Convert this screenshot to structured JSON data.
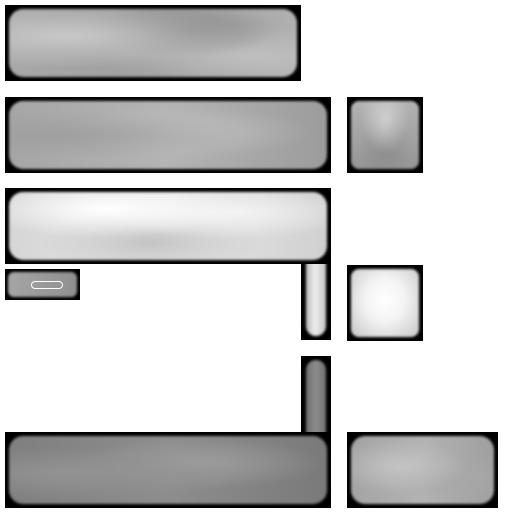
{
  "tiles": [
    {
      "name": "texture-tile-1",
      "colors": [
        "#b5b5b5",
        "#9a9a9a",
        "#7e7e7e",
        "#c4c4c4"
      ]
    },
    {
      "name": "texture-tile-2",
      "colors": [
        "#a9a9a9",
        "#b8b8b8",
        "#a2a2a2",
        "#9a9a9a"
      ]
    },
    {
      "name": "texture-tile-3",
      "colors": [
        "#bdbdbd",
        "#8d8d8d",
        "#8a8a8a",
        "#a3a3a3"
      ]
    },
    {
      "name": "texture-tile-4",
      "colors": [
        "#dcdcdc",
        "#f5f5f5",
        "#c9c9c9",
        "#e3e3e3"
      ]
    },
    {
      "name": "texture-tile-5",
      "colors": [
        "#b0b0b0",
        "#8c8c8c"
      ]
    },
    {
      "name": "texture-tile-6",
      "colors": [
        "#f2f2f2",
        "#ffffff",
        "#d0d0d0"
      ]
    },
    {
      "name": "texture-tile-7",
      "colors": [
        "#8a8a8a",
        "#9d9d9d",
        "#7a7a7a",
        "#969696"
      ]
    },
    {
      "name": "texture-tile-8",
      "colors": [
        "#9a9a9a",
        "#c0c0c0",
        "#a3a3a3",
        "#b4b4b4"
      ]
    }
  ],
  "background": "#ffffff",
  "frame_color": "#000000"
}
